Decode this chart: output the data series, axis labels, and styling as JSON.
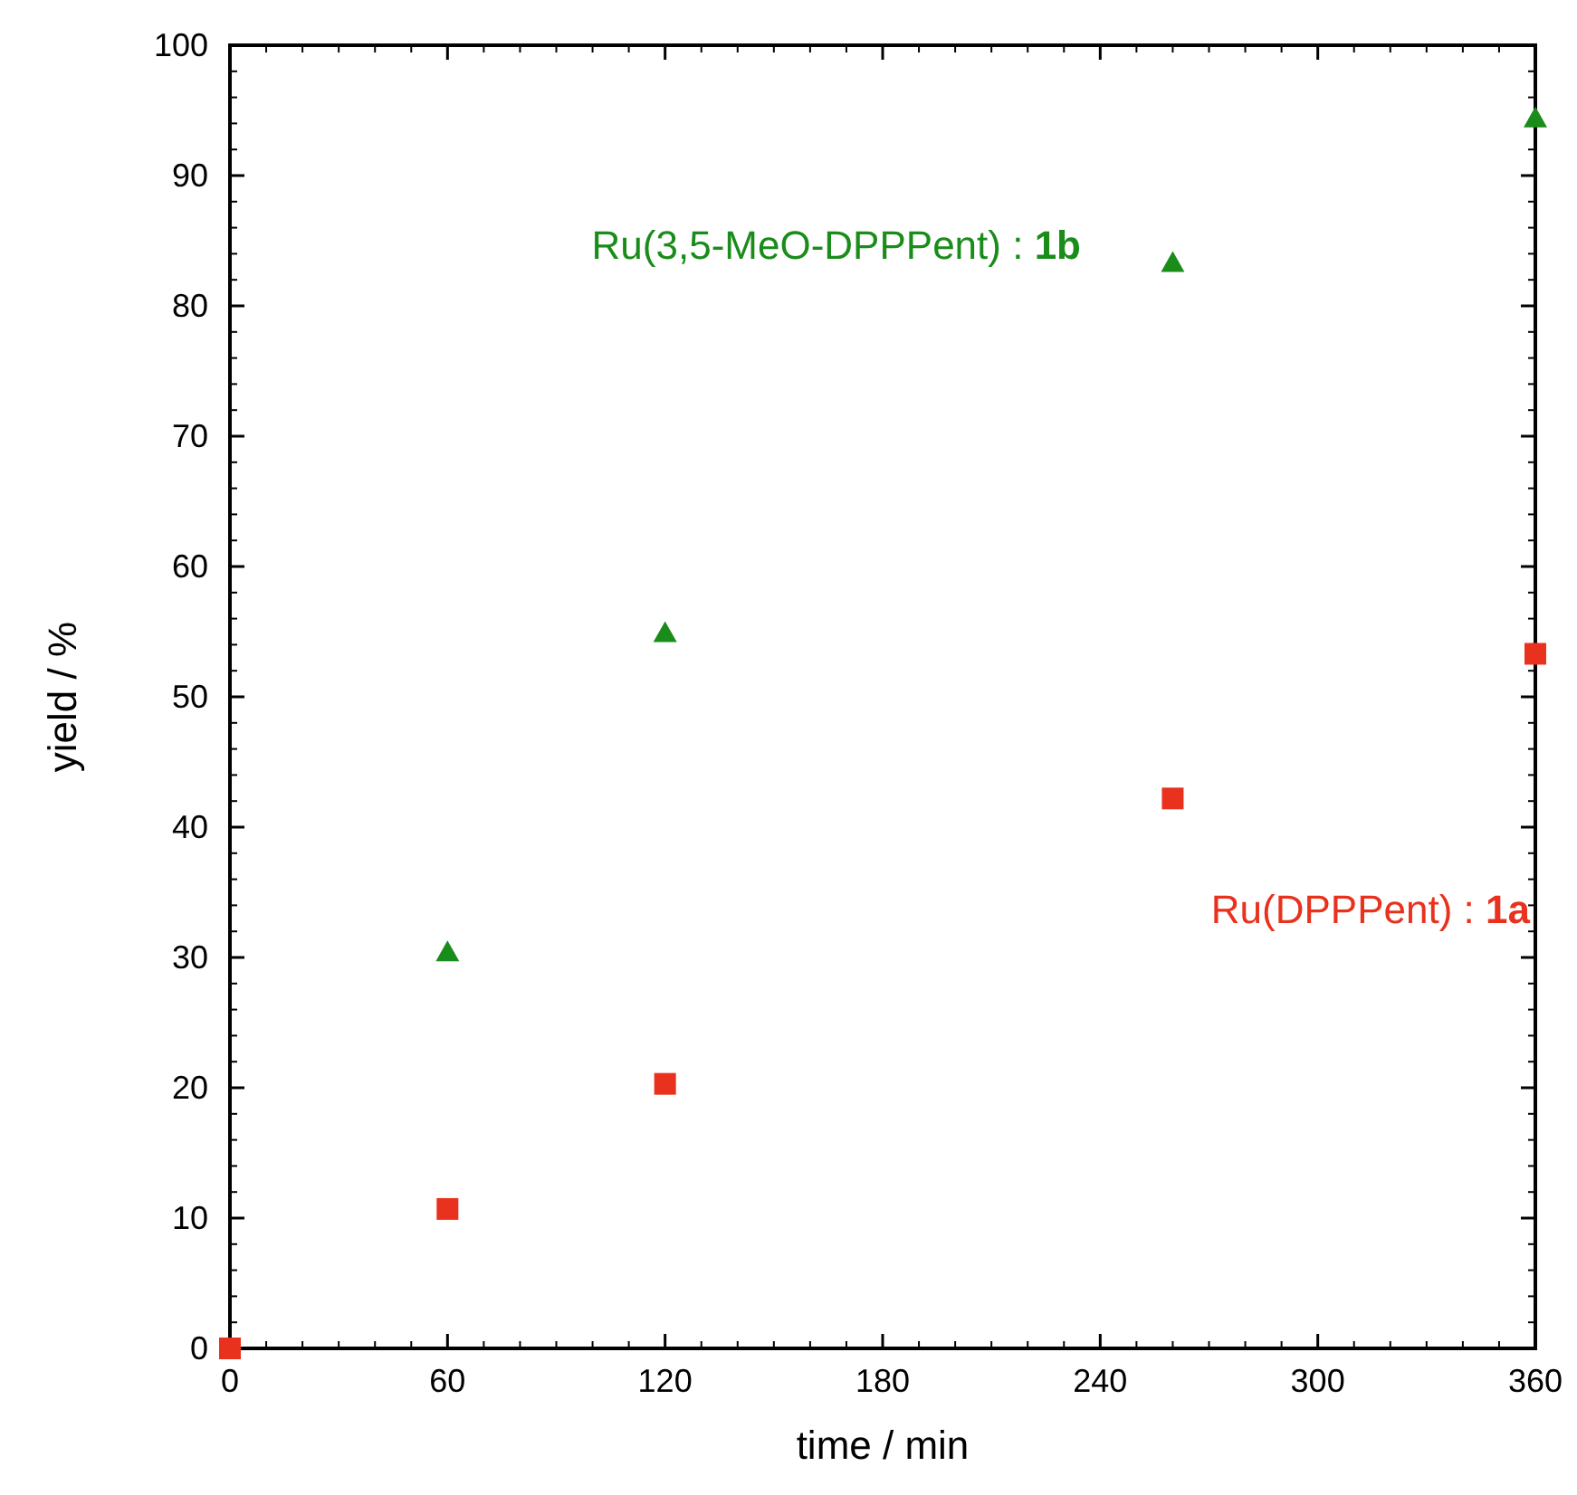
{
  "chart_data": {
    "type": "scatter",
    "xlabel": "time / min",
    "ylabel": "yield / %",
    "xlim": [
      0,
      360
    ],
    "xticks": [
      0,
      60,
      120,
      180,
      240,
      300,
      360
    ],
    "ylim": [
      0,
      100
    ],
    "yticks": [
      0,
      10,
      20,
      30,
      40,
      50,
      60,
      70,
      80,
      90,
      100
    ],
    "grid": false,
    "series": [
      {
        "name": "Ru(DPPPent) : 1a",
        "color": "#e8321e",
        "marker": "square",
        "x": [
          0,
          60,
          120,
          260,
          360
        ],
        "values": [
          0,
          10.7,
          20.3,
          42.2,
          53.3
        ]
      },
      {
        "name": "Ru(3,5-MeO-DPPPent) : 1b",
        "color": "#1a8c1a",
        "marker": "triangle",
        "x": [
          60,
          120,
          260,
          360
        ],
        "values": [
          30.4,
          54.9,
          83.3,
          94.4
        ]
      }
    ]
  }
}
